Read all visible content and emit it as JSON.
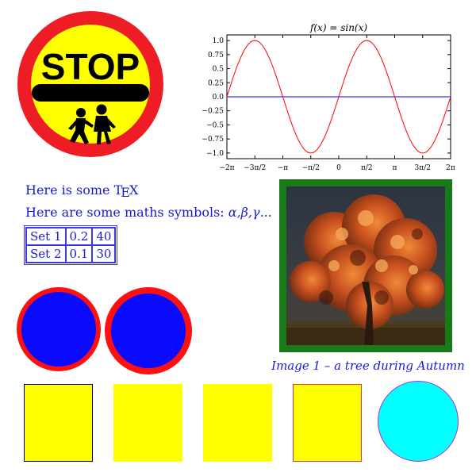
{
  "stop_sign": {
    "label": "STOP",
    "colors": {
      "ring": "#ee1c24",
      "face": "#ffff00",
      "bar": "#000000"
    }
  },
  "tex": {
    "line1_prefix": "Here is some ",
    "line1_logo_t": "T",
    "line1_logo_e": "E",
    "line1_logo_x": "X",
    "line2_prefix": "Here are some maths symbols: ",
    "line2_math": "α,β,γ...",
    "color": "#1a1ad4"
  },
  "table": {
    "rows": [
      [
        "Set 1",
        "0.2",
        "40"
      ],
      [
        "Set 2",
        "0.1",
        "30"
      ]
    ]
  },
  "image": {
    "caption": "Image 1 – a tree during Autumn",
    "frame_color": "#187a18"
  },
  "shapes": {
    "circle_fill": "#0a0aff",
    "circle_border": "#ff1010",
    "square_fill": "#ffff00",
    "cyan_fill": "#00ffff"
  },
  "chart_data": {
    "type": "line",
    "title": "f(x) = sin(x)",
    "xlabel": "",
    "ylabel": "",
    "xlim": [
      -6.2832,
      6.2832
    ],
    "ylim": [
      -1.1,
      1.1
    ],
    "x_ticks": [
      "−2π",
      "−3π/2",
      "−π",
      "−π/2",
      "0",
      "π/2",
      "π",
      "3π/2",
      "2π"
    ],
    "y_ticks": [
      "1.0",
      "0.75",
      "0.5",
      "0.25",
      "0.0",
      "−0.25",
      "−0.5",
      "−0.75",
      "−1.0"
    ],
    "series": [
      {
        "function": "sin(x)",
        "color": "#ff0000"
      },
      {
        "function": "0",
        "color": "#0000ff"
      }
    ],
    "grid": false
  }
}
